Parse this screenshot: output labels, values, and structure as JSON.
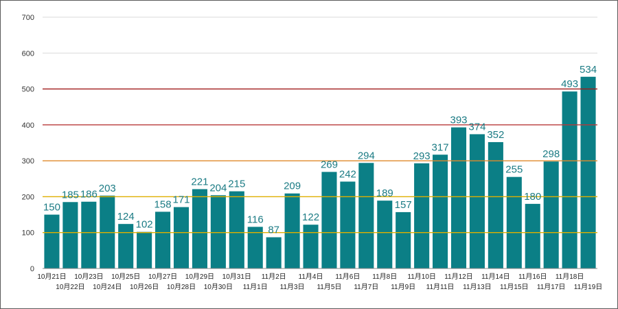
{
  "chart_data": {
    "type": "bar",
    "title": "",
    "xlabel": "",
    "ylabel": "",
    "ylim": [
      0,
      700
    ],
    "yticks": [
      0,
      100,
      200,
      300,
      400,
      500,
      600,
      700
    ],
    "grid": true,
    "legend": "none",
    "colors": {
      "bar": "#0b7f86",
      "grid": "#d9d9d9",
      "axis": "#888888",
      "ref_100": "#e0b000",
      "ref_200": "#e0b000",
      "ref_300": "#e08a2a",
      "ref_400": "#b83a3a",
      "ref_500": "#a01a1a",
      "label": "#1b7b84"
    },
    "reference_lines": [
      100,
      200,
      300,
      400,
      500
    ],
    "categories": [
      "10月21日",
      "10月22日",
      "10月23日",
      "10月24日",
      "10月25日",
      "10月26日",
      "10月27日",
      "10月28日",
      "10月29日",
      "10月30日",
      "10月31日",
      "11月1日",
      "11月2日",
      "11月3日",
      "11月4日",
      "11月5日",
      "11月6日",
      "11月7日",
      "11月8日",
      "11月9日",
      "11月10日",
      "11月11日",
      "11月12日",
      "11月13日",
      "11月14日",
      "11月15日",
      "11月16日",
      "11月17日",
      "11月18日",
      "11月19日"
    ],
    "values": [
      150,
      185,
      186,
      203,
      124,
      102,
      158,
      171,
      221,
      204,
      215,
      116,
      87,
      209,
      122,
      269,
      242,
      294,
      189,
      157,
      293,
      317,
      393,
      374,
      352,
      255,
      180,
      298,
      493,
      534
    ]
  }
}
